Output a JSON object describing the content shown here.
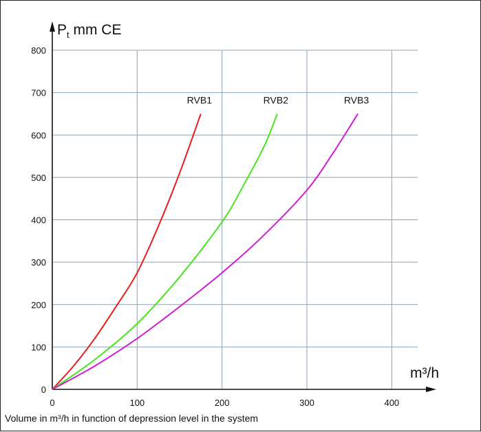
{
  "chart_data": {
    "type": "line",
    "ylabel_main": "P",
    "ylabel_sub": "t",
    "ylabel_rest": " mm CE",
    "xlabel": "m³/h",
    "caption": "Volume in m³/h in function of depression level in the system",
    "xlim": [
      0,
      450
    ],
    "ylim": [
      0,
      800
    ],
    "x_ticks": [
      "0",
      "100",
      "200",
      "300",
      "400"
    ],
    "y_ticks": [
      "0",
      "100",
      "200",
      "300",
      "400",
      "500",
      "600",
      "700",
      "800"
    ],
    "grid": true,
    "series": [
      {
        "name": "RVB1",
        "color": "#e81c1c",
        "x": [
          0,
          25,
          50,
          75,
          100,
          125,
          150,
          175
        ],
        "y": [
          0,
          55,
          120,
          195,
          275,
          385,
          510,
          650
        ]
      },
      {
        "name": "RVB2",
        "color": "#45e619",
        "x": [
          0,
          50,
          100,
          150,
          200,
          225,
          250,
          265
        ],
        "y": [
          0,
          70,
          155,
          265,
          395,
          480,
          575,
          650
        ]
      },
      {
        "name": "RVB3",
        "color": "#d21ad6",
        "x": [
          0,
          50,
          100,
          150,
          200,
          250,
          300,
          330,
          360
        ],
        "y": [
          0,
          55,
          120,
          195,
          275,
          365,
          470,
          555,
          650
        ]
      }
    ]
  }
}
